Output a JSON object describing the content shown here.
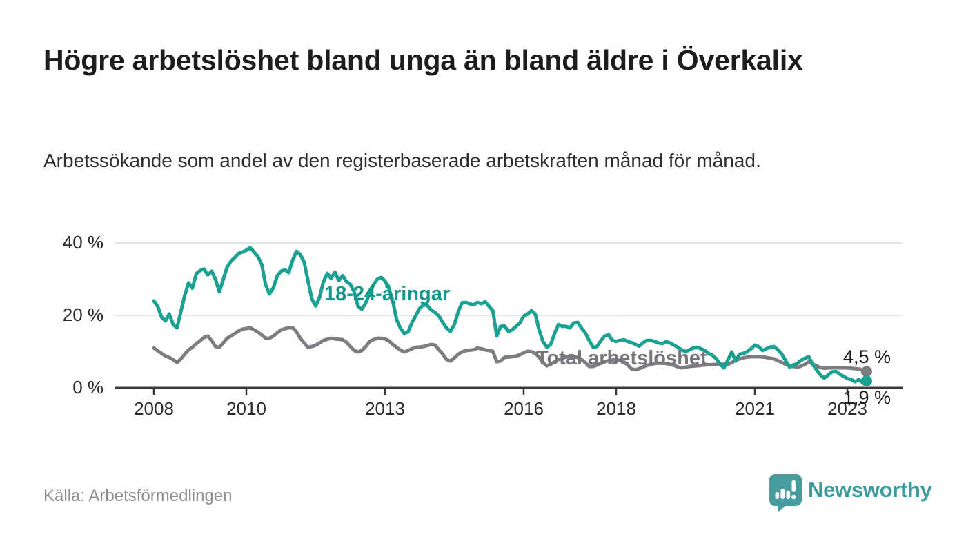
{
  "header": {
    "title": "Högre arbetslöshet bland unga än bland äldre i Överkalix",
    "subtitle": "Arbetssökande som andel av den registerbaserade arbetskraften månad för månad."
  },
  "source": {
    "label": "Källa: Arbetsförmedlingen"
  },
  "branding": {
    "name": "Newsworthy",
    "icon": "newsworthy-speech-bubble-bar-chart-icon",
    "color": "#3f9b9c"
  },
  "colors": {
    "youth_line": "#1aa192",
    "youth_label": "#13988a",
    "total_line": "#7d7d81",
    "total_label": "#77777b",
    "grid": "#d9d9d9",
    "axis": "#3b3b3b",
    "tick_text": "#2b2b2b",
    "end_label_text": "#1d1d1b"
  },
  "chart_data": {
    "type": "line",
    "frequency": "monthly",
    "start": "2008-01",
    "end": "2023-06",
    "unit": "%",
    "ylim": [
      0,
      42
    ],
    "grid": "horizontal-only",
    "legend_position": "inline-labels-on-lines",
    "y_ticks": [
      {
        "label": "0 %",
        "value": 0
      },
      {
        "label": "20 %",
        "value": 20
      },
      {
        "label": "40 %",
        "value": 40
      }
    ],
    "x_ticks": [
      {
        "label": "2008",
        "year": 2008
      },
      {
        "label": "2010",
        "year": 2010
      },
      {
        "label": "2013",
        "year": 2013
      },
      {
        "label": "2016",
        "year": 2016
      },
      {
        "label": "2018",
        "year": 2018
      },
      {
        "label": "2021",
        "year": 2021
      },
      {
        "label": "2023",
        "year": 2023
      }
    ],
    "series": [
      {
        "name": "18-24-åringar",
        "color": "#1aa192",
        "end_label": "1,9 %",
        "end_value": 1.9,
        "values": [
          24.0,
          22.5,
          19.5,
          18.5,
          20.4,
          17.5,
          16.6,
          21.0,
          25.5,
          29.0,
          27.5,
          31.5,
          32.4,
          32.8,
          31.2,
          32.2,
          29.9,
          26.5,
          29.9,
          33.3,
          35.0,
          36.0,
          37.1,
          37.5,
          38.0,
          38.7,
          37.5,
          36.2,
          34.1,
          28.5,
          25.9,
          27.6,
          30.9,
          32.2,
          32.6,
          31.8,
          35.2,
          37.7,
          36.8,
          34.7,
          29.6,
          24.6,
          22.6,
          25.0,
          29.3,
          31.6,
          30.2,
          32.0,
          29.6,
          31.0,
          29.3,
          28.6,
          26.5,
          22.5,
          21.7,
          23.5,
          26.0,
          28.5,
          30.0,
          30.5,
          29.5,
          27.5,
          24.0,
          18.8,
          16.5,
          15.0,
          15.5,
          18.0,
          20.0,
          22.0,
          22.9,
          22.7,
          21.5,
          20.8,
          19.8,
          18.0,
          16.5,
          15.6,
          17.5,
          21.0,
          23.5,
          23.6,
          23.2,
          22.9,
          23.6,
          23.2,
          23.8,
          22.5,
          21.3,
          14.3,
          17.0,
          17.1,
          15.6,
          16.0,
          17.0,
          17.9,
          19.8,
          20.4,
          21.3,
          20.4,
          16.0,
          12.8,
          11.2,
          12.0,
          15.0,
          17.5,
          17.0,
          17.0,
          16.6,
          17.9,
          18.1,
          16.5,
          15.2,
          13.1,
          11.2,
          11.4,
          13.0,
          14.3,
          14.7,
          13.1,
          12.8,
          13.1,
          13.3,
          12.8,
          12.5,
          12.0,
          11.5,
          12.5,
          13.1,
          13.1,
          12.8,
          12.4,
          12.2,
          12.8,
          12.4,
          11.8,
          11.2,
          10.5,
          10.0,
          10.5,
          11.0,
          11.2,
          10.8,
          10.3,
          9.5,
          9.0,
          8.0,
          6.5,
          5.5,
          7.7,
          9.9,
          7.4,
          9.3,
          9.5,
          10.0,
          10.8,
          11.8,
          11.4,
          10.3,
          10.8,
          11.3,
          11.4,
          10.5,
          9.3,
          7.5,
          5.7,
          6.3,
          6.7,
          7.6,
          8.2,
          8.6,
          6.5,
          5.0,
          3.6,
          2.7,
          3.5,
          4.4,
          4.6,
          3.8,
          3.2,
          2.6,
          2.3,
          1.7,
          2.3,
          1.4,
          1.9
        ]
      },
      {
        "name": "Total arbetslöshet",
        "color": "#7d7d81",
        "end_label": "4,5 %",
        "end_value": 4.5,
        "values": [
          11.0,
          10.2,
          9.5,
          8.8,
          8.4,
          7.8,
          7.0,
          8.0,
          9.3,
          10.5,
          11.2,
          12.2,
          13.0,
          13.9,
          14.3,
          13.0,
          11.4,
          11.2,
          12.4,
          13.7,
          14.3,
          15.0,
          15.7,
          16.2,
          16.4,
          16.6,
          16.0,
          15.4,
          14.6,
          13.7,
          13.7,
          14.3,
          15.2,
          16.0,
          16.3,
          16.6,
          16.6,
          15.5,
          13.7,
          12.4,
          11.2,
          11.4,
          11.8,
          12.4,
          13.1,
          13.4,
          13.7,
          13.5,
          13.4,
          13.3,
          12.6,
          11.4,
          10.3,
          9.9,
          10.3,
          11.4,
          12.8,
          13.3,
          13.7,
          13.7,
          13.5,
          13.0,
          12.0,
          11.2,
          10.4,
          9.9,
          10.3,
          10.8,
          11.2,
          11.3,
          11.4,
          11.7,
          12.0,
          11.8,
          10.5,
          9.3,
          7.8,
          7.4,
          8.3,
          9.3,
          9.9,
          10.3,
          10.4,
          10.5,
          11.0,
          10.8,
          10.5,
          10.3,
          10.1,
          7.2,
          7.4,
          8.4,
          8.5,
          8.6,
          8.8,
          9.1,
          9.7,
          10.1,
          10.0,
          9.5,
          8.5,
          7.0,
          6.1,
          6.5,
          7.2,
          7.8,
          8.2,
          8.5,
          8.5,
          8.6,
          8.4,
          7.8,
          7.0,
          5.9,
          5.9,
          6.3,
          6.8,
          7.2,
          7.5,
          7.7,
          7.7,
          7.6,
          7.2,
          6.3,
          5.2,
          5.0,
          5.3,
          5.8,
          6.2,
          6.5,
          6.7,
          6.8,
          6.8,
          6.7,
          6.5,
          6.2,
          5.8,
          5.5,
          5.7,
          5.9,
          6.0,
          6.1,
          6.2,
          6.3,
          6.4,
          6.4,
          6.5,
          6.6,
          6.5,
          6.5,
          7.0,
          7.6,
          8.0,
          8.3,
          8.5,
          8.6,
          8.6,
          8.6,
          8.5,
          8.4,
          8.2,
          8.0,
          7.5,
          7.0,
          6.5,
          6.1,
          5.9,
          5.7,
          6.0,
          6.5,
          7.2,
          6.6,
          6.1,
          5.6,
          5.4,
          5.5,
          5.5,
          5.6,
          5.5,
          5.5,
          5.5,
          5.4,
          5.3,
          5.2,
          5.0,
          4.5
        ]
      }
    ]
  }
}
